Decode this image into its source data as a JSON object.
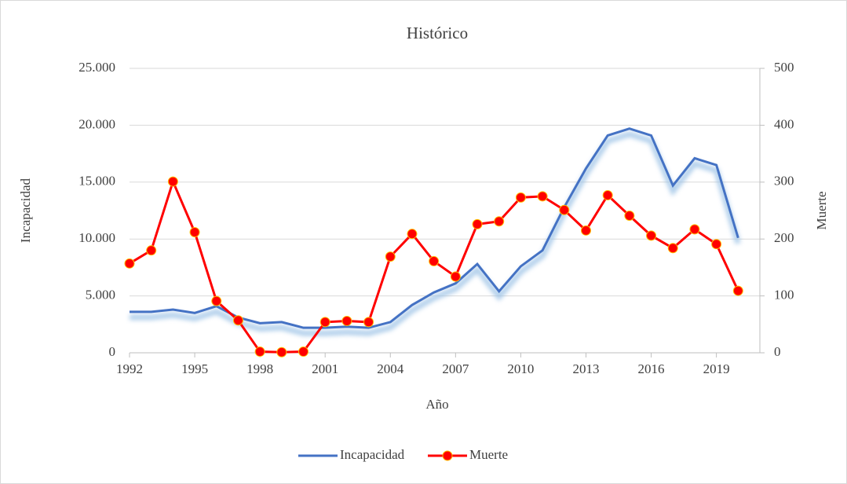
{
  "chart_data": {
    "type": "line",
    "title": "Histórico",
    "x_label": "Año",
    "y_label": "Incapacidad",
    "y2_label": "Muerte",
    "x": [
      1992,
      1993,
      1994,
      1995,
      1996,
      1997,
      1998,
      1999,
      2000,
      2001,
      2002,
      2003,
      2004,
      2005,
      2006,
      2007,
      2008,
      2009,
      2010,
      2011,
      2012,
      2013,
      2014,
      2015,
      2016,
      2017,
      2018,
      2019,
      2020
    ],
    "xlim": [
      1992,
      2021
    ],
    "xticks": [
      1992,
      1995,
      1998,
      2001,
      2004,
      2007,
      2010,
      2013,
      2016,
      2019
    ],
    "ylim": [
      0,
      25000
    ],
    "yticks": [
      0,
      {
        "value": 5000,
        "label": "5.000"
      },
      {
        "value": 10000,
        "label": "10.000"
      },
      {
        "value": 15000,
        "label": "15.000"
      },
      {
        "value": 20000,
        "label": "20.000"
      },
      {
        "value": 25000,
        "label": "25.000"
      }
    ],
    "y2lim": [
      0,
      500
    ],
    "y2ticks": [
      0,
      100,
      200,
      300,
      400,
      500
    ],
    "grid": true,
    "legend": "bottom",
    "series": [
      {
        "name": "Incapacidad",
        "color": "#4472c4",
        "values": [
          3600,
          3600,
          3800,
          3500,
          4100,
          3100,
          2600,
          2700,
          2200,
          2200,
          2300,
          2200,
          2700,
          4200,
          5300,
          6100,
          7800,
          5400,
          7600,
          9000,
          12800,
          16200,
          19100,
          19700,
          19100,
          14700,
          17100,
          16500,
          10100
        ]
      },
      {
        "name": "Muerte",
        "color": "#ff0000",
        "axis": "y2",
        "values": [
          157,
          180,
          301,
          212,
          91,
          57,
          2,
          1,
          2,
          54,
          56,
          54,
          169,
          209,
          161,
          134,
          226,
          231,
          273,
          275,
          251,
          215,
          277,
          241,
          206,
          184,
          217,
          191,
          109
        ]
      }
    ]
  }
}
